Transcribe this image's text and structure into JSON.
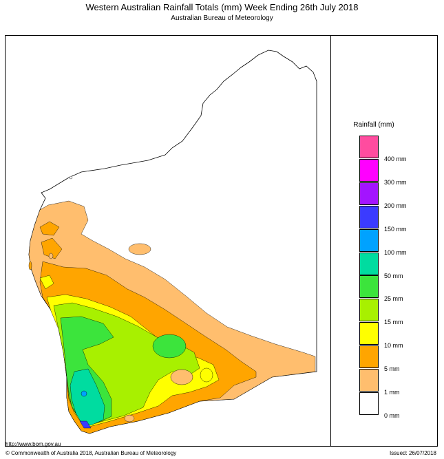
{
  "header": {
    "title": "Western Australian Rainfall Totals (mm)  Week Ending 26th July 2018",
    "subtitle": "Australian Bureau of Meteorology"
  },
  "legend": {
    "title": "Rainfall (mm)",
    "classes": [
      {
        "label": "400 mm",
        "color": "#ff4c9f"
      },
      {
        "label": "300 mm",
        "color": "#ff00ff"
      },
      {
        "label": "200 mm",
        "color": "#a314ff"
      },
      {
        "label": "150 mm",
        "color": "#3b3bff"
      },
      {
        "label": "100 mm",
        "color": "#00a2ff"
      },
      {
        "label": "50 mm",
        "color": "#00dca0"
      },
      {
        "label": "25 mm",
        "color": "#3ce43c"
      },
      {
        "label": "15 mm",
        "color": "#a8f000"
      },
      {
        "label": "10 mm",
        "color": "#ffff00"
      },
      {
        "label": "5 mm",
        "color": "#ffa500"
      },
      {
        "label": "1 mm",
        "color": "#ffbe6e"
      },
      {
        "label": "0 mm",
        "color": "#ffffff"
      }
    ]
  },
  "footer": {
    "url": "http://www.bom.gov.au",
    "copyright": "© Commonwealth of Australia 2018, Australian Bureau of Meteorology",
    "issued": "Issued: 26/07/2018"
  }
}
